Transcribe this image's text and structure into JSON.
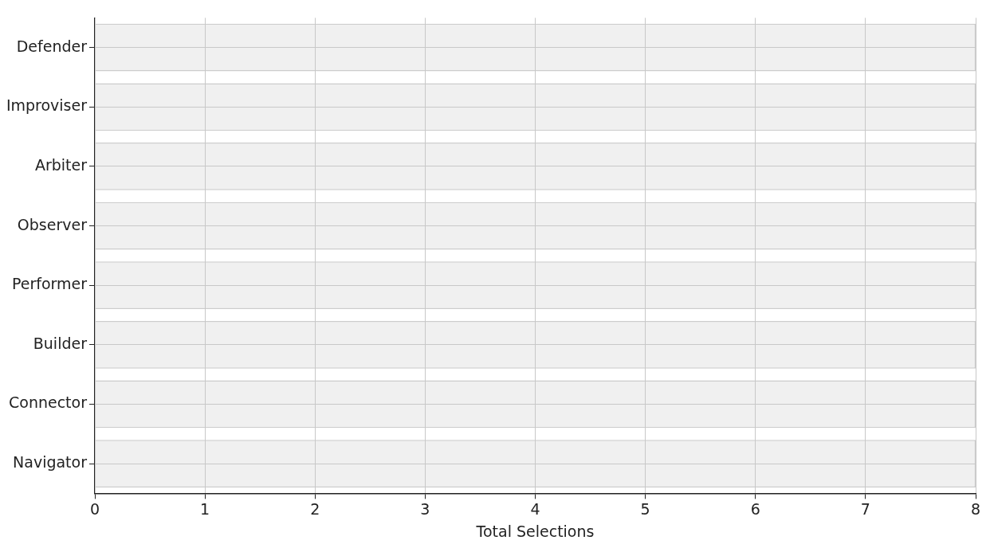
{
  "chart_data": {
    "type": "bar",
    "orientation": "horizontal",
    "xlabel": "Total Selections",
    "categories": [
      "Defender",
      "Improviser",
      "Arbiter",
      "Observer",
      "Performer",
      "Builder",
      "Connector",
      "Navigator"
    ],
    "values": [
      8,
      8,
      8,
      8,
      8,
      8,
      8,
      8
    ],
    "color": "#f0f0f0",
    "xlim": [
      0,
      8
    ],
    "xticks": [
      0,
      1,
      2,
      3,
      4,
      5,
      6,
      7,
      8
    ],
    "grid": true,
    "legend": false
  }
}
